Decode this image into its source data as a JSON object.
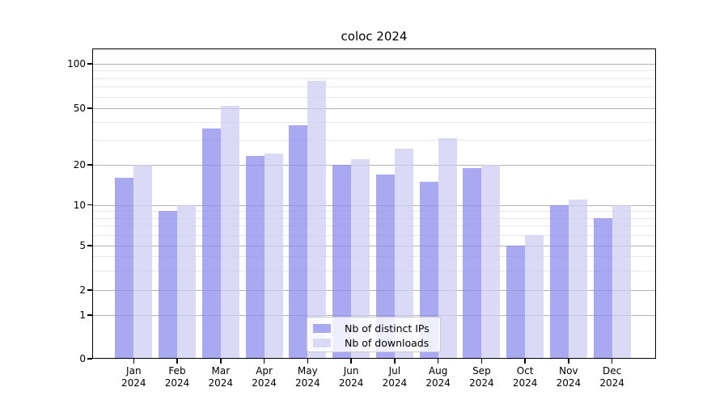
{
  "chart_data": {
    "type": "bar",
    "title": "coloc 2024",
    "x_months": [
      "Jan",
      "Feb",
      "Mar",
      "Apr",
      "May",
      "Jun",
      "Jul",
      "Aug",
      "Sep",
      "Oct",
      "Nov",
      "Dec"
    ],
    "x_year": "2024",
    "series": [
      {
        "name": "Nb of distinct IPs",
        "color": "#a9a9f1",
        "values": [
          16,
          9,
          36,
          23,
          38,
          20,
          17,
          15,
          19,
          5,
          10,
          8
        ]
      },
      {
        "name": "Nb of downloads",
        "color": "#dadaf7",
        "values": [
          20,
          10,
          52,
          24,
          77,
          22,
          26,
          31,
          20,
          6,
          11,
          10
        ]
      }
    ],
    "yscale": "symlog",
    "ylim": [
      0,
      130
    ],
    "y_major_ticks": [
      100,
      50,
      20,
      10,
      5,
      2,
      1,
      0
    ],
    "y_minor_ticks": [
      90,
      80,
      70,
      60,
      40,
      30,
      9,
      8,
      7,
      6,
      4,
      3
    ],
    "grid": true,
    "legend": {
      "position": "lower-center",
      "entries": [
        "Nb of distinct IPs",
        "Nb of downloads"
      ]
    }
  }
}
